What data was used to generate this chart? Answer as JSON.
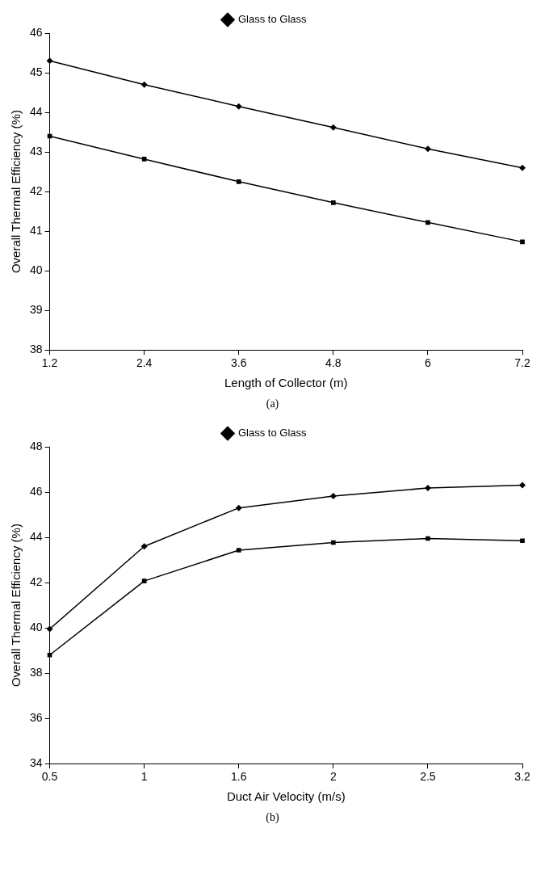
{
  "chart_data": [
    {
      "type": "line",
      "categories": [
        "1.2",
        "2.4",
        "3.6",
        "4.8",
        "6",
        "7.2"
      ],
      "xlabel": "Length of Collector (m)",
      "ylabel": "Overall Thermal Efficiency (%)",
      "ylim": [
        38,
        46
      ],
      "yticks": [
        38,
        39,
        40,
        41,
        42,
        43,
        44,
        45,
        46
      ],
      "grid": false,
      "legend": "top",
      "annotations": [
        "(a)"
      ],
      "series": [
        {
          "name": "Glass to Glass",
          "color": "#000000",
          "marker": "diamond",
          "values": [
            45.3,
            44.7,
            44.15,
            43.62,
            43.08,
            42.6
          ]
        },
        {
          "color": "#000000",
          "marker": "square",
          "values": [
            43.4,
            42.82,
            42.25,
            41.72,
            41.22,
            40.73
          ]
        }
      ]
    },
    {
      "type": "line",
      "categories": [
        "0.5",
        "1",
        "1.6",
        "2",
        "2.5",
        "3.2"
      ],
      "xlabel": "Duct Air Velocity (m/s)",
      "ylabel": "Overall Thermal Efficiency (%)",
      "ylim": [
        34,
        48
      ],
      "yticks": [
        34,
        36,
        38,
        40,
        42,
        44,
        46,
        48
      ],
      "grid": false,
      "legend": "top",
      "annotations": [
        "(b)"
      ],
      "series": [
        {
          "name": "Glass to Glass",
          "color": "#000000",
          "marker": "diamond",
          "values": [
            39.95,
            43.6,
            45.3,
            45.82,
            46.18,
            46.3
          ]
        },
        {
          "color": "#000000",
          "marker": "square",
          "values": [
            38.8,
            42.07,
            43.43,
            43.77,
            43.95,
            43.85
          ]
        }
      ]
    }
  ]
}
